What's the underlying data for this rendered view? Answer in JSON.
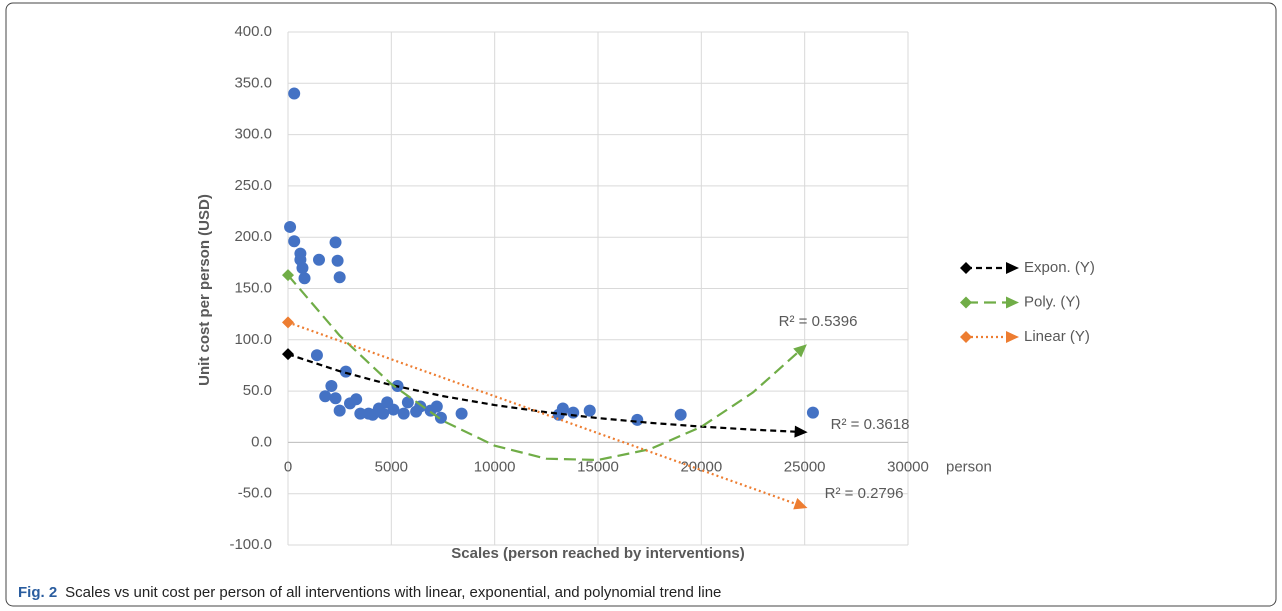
{
  "chart_data": {
    "type": "scatter",
    "x_label": "Scales (person reached by interventions)",
    "y_label": "Unit cost per person (USD)",
    "x_unit_label": "person",
    "xlim": [
      0,
      30000
    ],
    "ylim": [
      -100,
      400
    ],
    "xticks": [
      0,
      5000,
      10000,
      15000,
      20000,
      25000,
      30000
    ],
    "yticks": [
      {
        "value": -100,
        "label": "-100.0"
      },
      {
        "value": -50,
        "label": "-50.0"
      },
      {
        "value": 0,
        "label": "0.0"
      },
      {
        "value": 50,
        "label": "50.0"
      },
      {
        "value": 100,
        "label": "100.0"
      },
      {
        "value": 150,
        "label": "150.0"
      },
      {
        "value": 200,
        "label": "200.0"
      },
      {
        "value": 250,
        "label": "250.0"
      },
      {
        "value": 300,
        "label": "300.0"
      },
      {
        "value": 350,
        "label": "350.0"
      },
      {
        "value": 400,
        "label": "400.0"
      }
    ],
    "grid": true,
    "series": [
      {
        "color": "#4472c4",
        "x": [
          300,
          100,
          300,
          600,
          600,
          700,
          800,
          1500,
          2300,
          2400,
          2500,
          1400,
          2800,
          1800,
          2100,
          2300,
          2500,
          3000,
          3300,
          3500,
          3900,
          4100,
          4400,
          4600,
          4800,
          5100,
          5300,
          5600,
          5800,
          6200,
          6400,
          6900,
          7200,
          7400,
          8400,
          13100,
          13300,
          13800,
          14600,
          16900,
          19000,
          25400
        ],
        "values": [
          340,
          210,
          196,
          184,
          178,
          170,
          160,
          178,
          195,
          177,
          161,
          85,
          69,
          45,
          55,
          43,
          31,
          38,
          42,
          28,
          28,
          27,
          33,
          28,
          39,
          32,
          55,
          28,
          39,
          30,
          35,
          31,
          35,
          24,
          28,
          27,
          33,
          29,
          31,
          22,
          27,
          29
        ]
      }
    ],
    "trendlines": [
      {
        "name": "Expon. (Y)",
        "color": "#000000",
        "dash": "6 4",
        "x": [
          0,
          2500,
          5000,
          7500,
          10000,
          12500,
          15000,
          17500,
          20000,
          22500,
          25000
        ],
        "values": [
          86,
          69.4,
          55.9,
          45.1,
          36.4,
          29.4,
          23.7,
          19.1,
          15.4,
          12.4,
          10.0
        ],
        "r2_label": "R² = 0.3618"
      },
      {
        "name": "Poly. (Y)",
        "color": "#70ad47",
        "dash": "12 6",
        "x": [
          0,
          2500,
          5000,
          7500,
          10000,
          12500,
          15000,
          17500,
          20000,
          22500,
          25000
        ],
        "values": [
          163,
          104.1,
          56.8,
          21.0,
          -3.2,
          -15.9,
          -17.1,
          -6.7,
          15.2,
          48.7,
          93.7
        ],
        "r2_label": "R² = 0.5396"
      },
      {
        "name": "Linear (Y)",
        "color": "#ed7d31",
        "dash": "2 3",
        "x": [
          0,
          25000
        ],
        "values": [
          117,
          -63
        ],
        "r2_label": "R² = 0.2796"
      }
    ]
  },
  "caption": {
    "prefix": "Fig. 2",
    "text": "Scales vs unit cost per person of all interventions with linear, exponential, and polynomial trend line"
  }
}
